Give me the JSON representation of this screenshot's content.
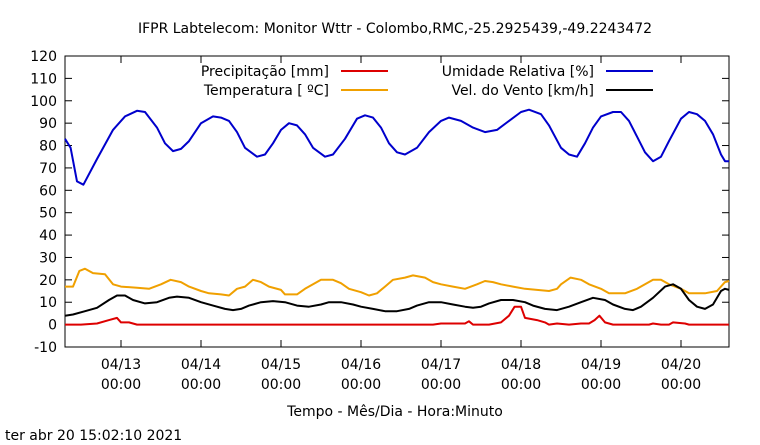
{
  "chart_data": {
    "type": "line",
    "title": "IFPR Labtelecom: Monitor Wttr - Colombo,RMC,-25.2925439,-49.2243472",
    "xlabel": "Tempo - Mês/Dia - Hora:Minuto",
    "ylabel": "",
    "footer": "ter abr 20 15:02:10 2021",
    "ylim": [
      -10,
      120
    ],
    "yticks": [
      -10,
      0,
      10,
      20,
      30,
      40,
      50,
      60,
      70,
      80,
      90,
      100,
      110,
      120
    ],
    "xlim": [
      12.3,
      20.6
    ],
    "xticks": [
      {
        "x": 13,
        "date": "04/13",
        "time": "00:00"
      },
      {
        "x": 14,
        "date": "04/14",
        "time": "00:00"
      },
      {
        "x": 15,
        "date": "04/15",
        "time": "00:00"
      },
      {
        "x": 16,
        "date": "04/16",
        "time": "00:00"
      },
      {
        "x": 17,
        "date": "04/17",
        "time": "00:00"
      },
      {
        "x": 18,
        "date": "04/18",
        "time": "00:00"
      },
      {
        "x": 19,
        "date": "04/19",
        "time": "00:00"
      },
      {
        "x": 20,
        "date": "04/20",
        "time": "00:00"
      }
    ],
    "grid": false,
    "legend": "top",
    "series": [
      {
        "name": "Precipitação [mm]",
        "color": "#dd0000",
        "points": [
          [
            12.3,
            0
          ],
          [
            12.5,
            0
          ],
          [
            12.7,
            0.5
          ],
          [
            12.85,
            2
          ],
          [
            12.95,
            3
          ],
          [
            13.0,
            1
          ],
          [
            13.1,
            1
          ],
          [
            13.2,
            0
          ],
          [
            14.0,
            0
          ],
          [
            15.0,
            0
          ],
          [
            16.0,
            0
          ],
          [
            16.9,
            0
          ],
          [
            17.0,
            0.5
          ],
          [
            17.3,
            0.5
          ],
          [
            17.35,
            1.5
          ],
          [
            17.4,
            0
          ],
          [
            17.6,
            0
          ],
          [
            17.75,
            1
          ],
          [
            17.85,
            4
          ],
          [
            17.92,
            8
          ],
          [
            18.0,
            8
          ],
          [
            18.05,
            3
          ],
          [
            18.2,
            2
          ],
          [
            18.3,
            1
          ],
          [
            18.35,
            0
          ],
          [
            18.45,
            0.5
          ],
          [
            18.6,
            0
          ],
          [
            18.75,
            0.5
          ],
          [
            18.85,
            0.5
          ],
          [
            18.92,
            2
          ],
          [
            18.98,
            4
          ],
          [
            19.05,
            1
          ],
          [
            19.15,
            0
          ],
          [
            19.6,
            0
          ],
          [
            19.65,
            0.5
          ],
          [
            19.75,
            0
          ],
          [
            19.85,
            0
          ],
          [
            19.9,
            1
          ],
          [
            20.05,
            0.5
          ],
          [
            20.1,
            0
          ],
          [
            20.6,
            0
          ]
        ]
      },
      {
        "name": "Temperatura [ ºC]",
        "color": "#f0a000",
        "points": [
          [
            12.3,
            17
          ],
          [
            12.4,
            17
          ],
          [
            12.48,
            24
          ],
          [
            12.55,
            25
          ],
          [
            12.65,
            23
          ],
          [
            12.8,
            22.5
          ],
          [
            12.9,
            18
          ],
          [
            13.0,
            17
          ],
          [
            13.2,
            16.5
          ],
          [
            13.35,
            16
          ],
          [
            13.5,
            18
          ],
          [
            13.62,
            20
          ],
          [
            13.75,
            19
          ],
          [
            13.85,
            17
          ],
          [
            14.0,
            15
          ],
          [
            14.1,
            14
          ],
          [
            14.25,
            13.5
          ],
          [
            14.35,
            13
          ],
          [
            14.45,
            16
          ],
          [
            14.55,
            17
          ],
          [
            14.65,
            20
          ],
          [
            14.75,
            19
          ],
          [
            14.85,
            17
          ],
          [
            15.0,
            15.5
          ],
          [
            15.05,
            13.5
          ],
          [
            15.2,
            13.5
          ],
          [
            15.3,
            16
          ],
          [
            15.4,
            18
          ],
          [
            15.5,
            20
          ],
          [
            15.65,
            20
          ],
          [
            15.75,
            18.5
          ],
          [
            15.85,
            16
          ],
          [
            16.0,
            14.5
          ],
          [
            16.1,
            13
          ],
          [
            16.2,
            14
          ],
          [
            16.3,
            17
          ],
          [
            16.4,
            20
          ],
          [
            16.55,
            21
          ],
          [
            16.65,
            22
          ],
          [
            16.8,
            21
          ],
          [
            16.9,
            19
          ],
          [
            17.0,
            18
          ],
          [
            17.15,
            17
          ],
          [
            17.3,
            16
          ],
          [
            17.45,
            18
          ],
          [
            17.55,
            19.5
          ],
          [
            17.65,
            19
          ],
          [
            17.75,
            18
          ],
          [
            17.9,
            17
          ],
          [
            18.05,
            16
          ],
          [
            18.2,
            15.5
          ],
          [
            18.35,
            15
          ],
          [
            18.45,
            16
          ],
          [
            18.5,
            18
          ],
          [
            18.62,
            21
          ],
          [
            18.75,
            20
          ],
          [
            18.85,
            18
          ],
          [
            19.0,
            16
          ],
          [
            19.1,
            14
          ],
          [
            19.3,
            14
          ],
          [
            19.45,
            16
          ],
          [
            19.55,
            18
          ],
          [
            19.65,
            20
          ],
          [
            19.75,
            20
          ],
          [
            19.85,
            18
          ],
          [
            20.0,
            16
          ],
          [
            20.1,
            14
          ],
          [
            20.3,
            14
          ],
          [
            20.45,
            15
          ],
          [
            20.55,
            19
          ],
          [
            20.6,
            19.5
          ]
        ]
      },
      {
        "name": "Umidade Relativa [%]",
        "color": "#0000cc",
        "points": [
          [
            12.3,
            83
          ],
          [
            12.37,
            79
          ],
          [
            12.45,
            64
          ],
          [
            12.53,
            62.5
          ],
          [
            12.7,
            74
          ],
          [
            12.9,
            87
          ],
          [
            13.05,
            93
          ],
          [
            13.2,
            95.5
          ],
          [
            13.3,
            95
          ],
          [
            13.45,
            88
          ],
          [
            13.55,
            81
          ],
          [
            13.65,
            77.5
          ],
          [
            13.75,
            78.5
          ],
          [
            13.85,
            82
          ],
          [
            14.0,
            90
          ],
          [
            14.15,
            93
          ],
          [
            14.25,
            92.5
          ],
          [
            14.35,
            91
          ],
          [
            14.45,
            86
          ],
          [
            14.55,
            79
          ],
          [
            14.7,
            75
          ],
          [
            14.8,
            76
          ],
          [
            14.9,
            81
          ],
          [
            15.0,
            87
          ],
          [
            15.1,
            90
          ],
          [
            15.2,
            89
          ],
          [
            15.3,
            85
          ],
          [
            15.4,
            79
          ],
          [
            15.55,
            75
          ],
          [
            15.65,
            76
          ],
          [
            15.8,
            83
          ],
          [
            15.95,
            92
          ],
          [
            16.05,
            93.5
          ],
          [
            16.15,
            92.5
          ],
          [
            16.25,
            88
          ],
          [
            16.35,
            81
          ],
          [
            16.45,
            77
          ],
          [
            16.55,
            76
          ],
          [
            16.7,
            79
          ],
          [
            16.85,
            86
          ],
          [
            17.0,
            91
          ],
          [
            17.1,
            92.5
          ],
          [
            17.25,
            91
          ],
          [
            17.4,
            88
          ],
          [
            17.55,
            86
          ],
          [
            17.7,
            87
          ],
          [
            17.85,
            91
          ],
          [
            18.0,
            95
          ],
          [
            18.1,
            96
          ],
          [
            18.25,
            94
          ],
          [
            18.35,
            89
          ],
          [
            18.5,
            79
          ],
          [
            18.6,
            76
          ],
          [
            18.7,
            75
          ],
          [
            18.8,
            81
          ],
          [
            18.9,
            88
          ],
          [
            19.0,
            93
          ],
          [
            19.15,
            95
          ],
          [
            19.25,
            95
          ],
          [
            19.35,
            91
          ],
          [
            19.45,
            84
          ],
          [
            19.55,
            77
          ],
          [
            19.65,
            73
          ],
          [
            19.75,
            75
          ],
          [
            19.85,
            82
          ],
          [
            20.0,
            92
          ],
          [
            20.1,
            95
          ],
          [
            20.2,
            94
          ],
          [
            20.3,
            91
          ],
          [
            20.4,
            85
          ],
          [
            20.5,
            76
          ],
          [
            20.55,
            73
          ],
          [
            20.6,
            73
          ]
        ]
      },
      {
        "name": "Vel. do Vento [km/h]",
        "color": "#000000",
        "points": [
          [
            12.3,
            4
          ],
          [
            12.4,
            4.5
          ],
          [
            12.55,
            6
          ],
          [
            12.7,
            7.5
          ],
          [
            12.85,
            11
          ],
          [
            12.95,
            13
          ],
          [
            13.05,
            13
          ],
          [
            13.15,
            11
          ],
          [
            13.3,
            9.5
          ],
          [
            13.45,
            10
          ],
          [
            13.6,
            12
          ],
          [
            13.7,
            12.5
          ],
          [
            13.85,
            12
          ],
          [
            14.0,
            10
          ],
          [
            14.15,
            8.5
          ],
          [
            14.3,
            7
          ],
          [
            14.4,
            6.5
          ],
          [
            14.5,
            7
          ],
          [
            14.6,
            8.5
          ],
          [
            14.75,
            10
          ],
          [
            14.9,
            10.5
          ],
          [
            15.05,
            10
          ],
          [
            15.2,
            8.5
          ],
          [
            15.35,
            8
          ],
          [
            15.5,
            9
          ],
          [
            15.6,
            10
          ],
          [
            15.75,
            10
          ],
          [
            15.9,
            9
          ],
          [
            16.0,
            8
          ],
          [
            16.15,
            7
          ],
          [
            16.3,
            6
          ],
          [
            16.45,
            6
          ],
          [
            16.6,
            7
          ],
          [
            16.7,
            8.5
          ],
          [
            16.85,
            10
          ],
          [
            17.0,
            10
          ],
          [
            17.15,
            9
          ],
          [
            17.3,
            8
          ],
          [
            17.4,
            7.5
          ],
          [
            17.5,
            8
          ],
          [
            17.6,
            9.5
          ],
          [
            17.75,
            11
          ],
          [
            17.9,
            11
          ],
          [
            18.05,
            10
          ],
          [
            18.15,
            8.5
          ],
          [
            18.3,
            7
          ],
          [
            18.45,
            6.5
          ],
          [
            18.6,
            8
          ],
          [
            18.75,
            10
          ],
          [
            18.9,
            12
          ],
          [
            19.05,
            11
          ],
          [
            19.15,
            9
          ],
          [
            19.3,
            7
          ],
          [
            19.4,
            6.5
          ],
          [
            19.5,
            8
          ],
          [
            19.65,
            12
          ],
          [
            19.8,
            17
          ],
          [
            19.9,
            18
          ],
          [
            20.0,
            16
          ],
          [
            20.1,
            11
          ],
          [
            20.2,
            8
          ],
          [
            20.3,
            7
          ],
          [
            20.4,
            9
          ],
          [
            20.5,
            15
          ],
          [
            20.55,
            16
          ],
          [
            20.6,
            15.5
          ]
        ]
      }
    ]
  }
}
